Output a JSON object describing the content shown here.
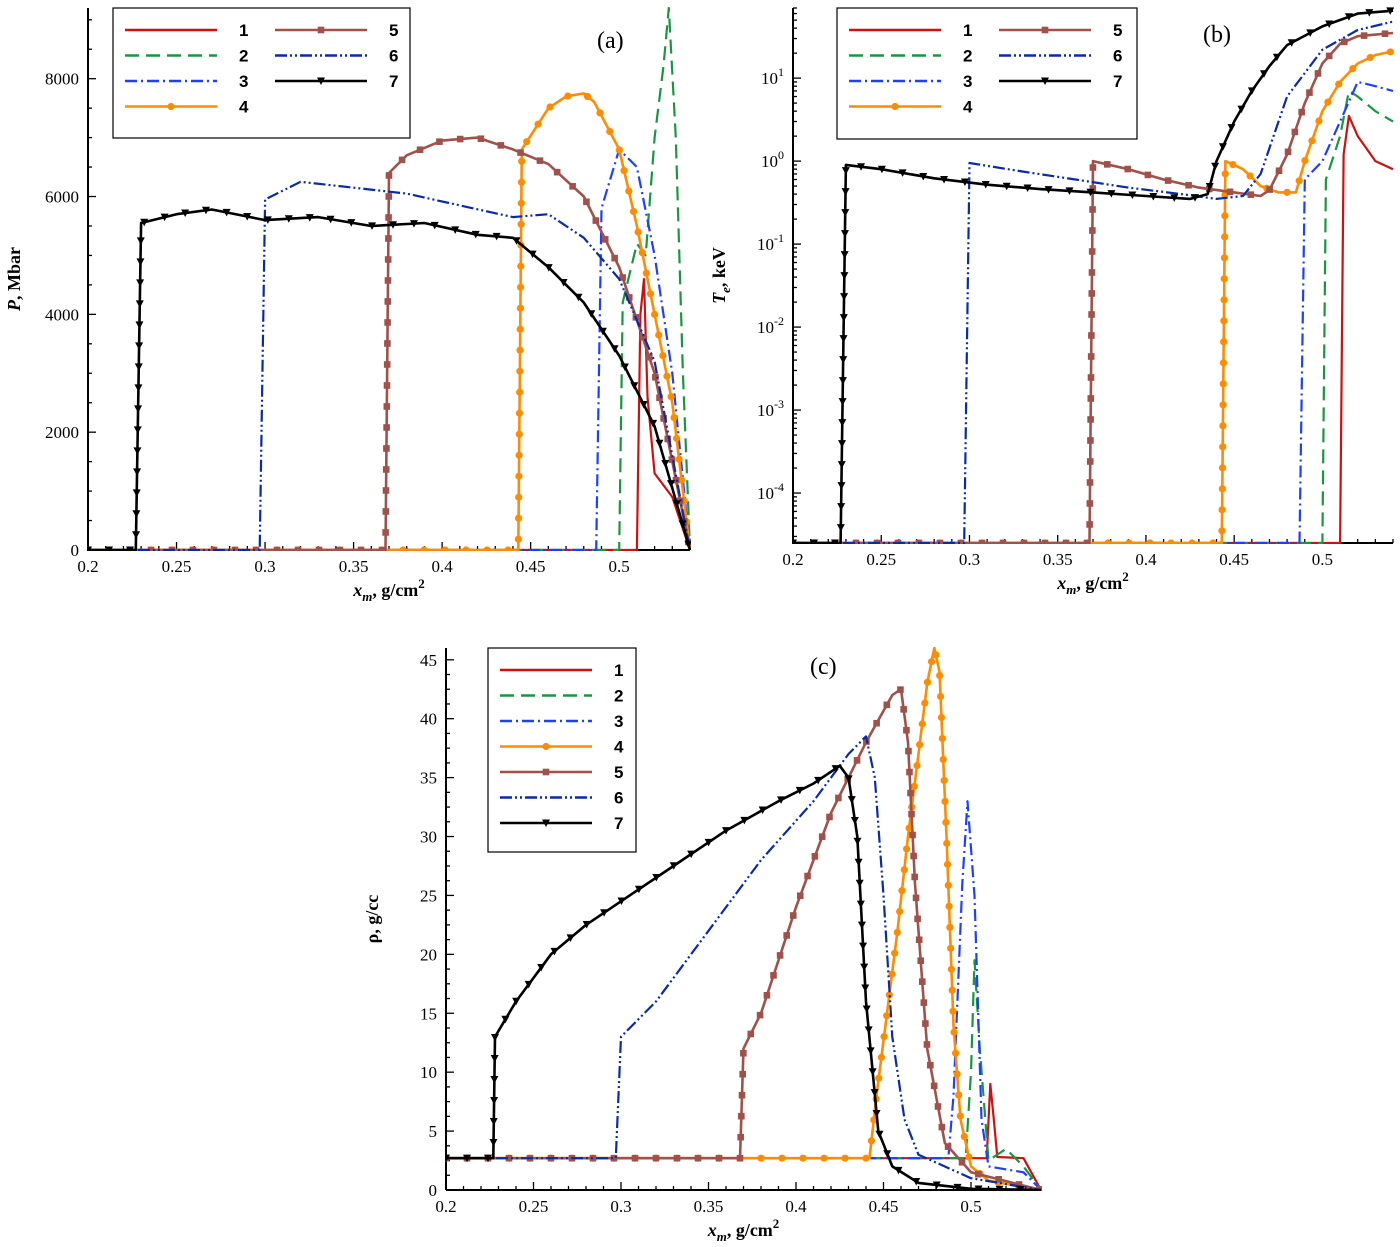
{
  "figure": {
    "title": "",
    "legend_entries": [
      "1",
      "2",
      "3",
      "4",
      "5",
      "6",
      "7"
    ],
    "colors": {
      "1": "#cc1111",
      "2": "#1a9641",
      "3": "#1f3fff",
      "4": "#ff8c00",
      "5": "#a0524a",
      "6": "#0b2aa8",
      "7": "#000000"
    },
    "line_styles": {
      "1": "solid",
      "2": "dashed",
      "3": "dash-dot",
      "4": "solid-circle",
      "5": "solid-square",
      "6": "dash-dot-dot",
      "7": "solid-triangle-down"
    }
  },
  "chart_data": [
    {
      "panel": "(a)",
      "type": "line",
      "xlabel": "x_m, g/cm^2",
      "ylabel": "P, Mbar",
      "xlim": [
        0.2,
        0.54
      ],
      "ylim": [
        0,
        9200
      ],
      "yscale": "linear",
      "xticks": [
        0.2,
        0.25,
        0.3,
        0.35,
        0.4,
        0.45,
        0.5
      ],
      "yticks": [
        0,
        2000,
        4000,
        6000,
        8000
      ],
      "legend_position": "top-left",
      "legend_columns": 2,
      "series": [
        {
          "name": "1",
          "x": [
            0.2,
            0.51,
            0.512,
            0.514,
            0.516,
            0.52,
            0.53,
            0.54
          ],
          "y": [
            0,
            0,
            4000,
            4600,
            2600,
            1300,
            900,
            0
          ]
        },
        {
          "name": "2",
          "x": [
            0.2,
            0.5,
            0.502,
            0.51,
            0.515,
            0.52,
            0.525,
            0.528,
            0.532,
            0.536,
            0.54
          ],
          "y": [
            0,
            0,
            4200,
            5200,
            5000,
            7000,
            8200,
            9200,
            7000,
            3000,
            0
          ]
        },
        {
          "name": "3",
          "x": [
            0.2,
            0.487,
            0.49,
            0.5,
            0.51,
            0.52,
            0.53,
            0.54
          ],
          "y": [
            0,
            0,
            5800,
            6800,
            6500,
            5000,
            3000,
            0
          ]
        },
        {
          "name": "4",
          "x": [
            0.2,
            0.443,
            0.445,
            0.46,
            0.47,
            0.48,
            0.486,
            0.5,
            0.51,
            0.52,
            0.53,
            0.54
          ],
          "y": [
            0,
            0,
            6800,
            7500,
            7700,
            7750,
            7600,
            6800,
            5500,
            4000,
            2500,
            0
          ]
        },
        {
          "name": "5",
          "x": [
            0.2,
            0.368,
            0.37,
            0.38,
            0.4,
            0.42,
            0.44,
            0.46,
            0.48,
            0.5,
            0.52,
            0.54
          ],
          "y": [
            0,
            0,
            6400,
            6700,
            6950,
            7000,
            6800,
            6550,
            6000,
            4800,
            3000,
            0
          ]
        },
        {
          "name": "6",
          "x": [
            0.2,
            0.297,
            0.3,
            0.32,
            0.35,
            0.38,
            0.41,
            0.44,
            0.46,
            0.48,
            0.5,
            0.52,
            0.54
          ],
          "y": [
            0,
            0,
            5950,
            6250,
            6150,
            6050,
            5850,
            5650,
            5700,
            5300,
            4600,
            3200,
            0
          ]
        },
        {
          "name": "7",
          "x": [
            0.2,
            0.227,
            0.23,
            0.25,
            0.27,
            0.3,
            0.33,
            0.36,
            0.39,
            0.42,
            0.44,
            0.46,
            0.48,
            0.5,
            0.52,
            0.54
          ],
          "y": [
            0,
            0,
            5550,
            5700,
            5780,
            5600,
            5650,
            5500,
            5550,
            5350,
            5300,
            4800,
            4200,
            3300,
            2100,
            0
          ]
        }
      ]
    },
    {
      "panel": "(b)",
      "type": "line",
      "xlabel": "x_m, g/cm^2",
      "ylabel": "T_e, keV",
      "xlim": [
        0.2,
        0.54
      ],
      "ylim": [
        2.5e-05,
        70
      ],
      "yscale": "log",
      "xticks": [
        0.2,
        0.25,
        0.3,
        0.35,
        0.4,
        0.45,
        0.5
      ],
      "yticks": [
        0.0001,
        0.001,
        0.01,
        0.1,
        1,
        10
      ],
      "ytick_labels": [
        "10^-4",
        "10^-3",
        "10^-2",
        "10^-1",
        "10^0",
        "10^1"
      ],
      "legend_position": "top-left",
      "legend_columns": 2,
      "series": [
        {
          "name": "1",
          "x": [
            0.2,
            0.51,
            0.512,
            0.515,
            0.52,
            0.53,
            0.54
          ],
          "y": [
            2.5e-05,
            2.5e-05,
            1.2,
            3.5,
            2,
            1,
            0.8
          ]
        },
        {
          "name": "2",
          "x": [
            0.2,
            0.5,
            0.502,
            0.51,
            0.515,
            0.52,
            0.53,
            0.54
          ],
          "y": [
            2.5e-05,
            2.5e-05,
            0.6,
            2,
            7,
            6,
            4,
            3
          ]
        },
        {
          "name": "3",
          "x": [
            0.2,
            0.487,
            0.49,
            0.5,
            0.51,
            0.52,
            0.53,
            0.54
          ],
          "y": [
            2.5e-05,
            2.5e-05,
            0.6,
            1,
            3,
            9,
            8,
            7
          ]
        },
        {
          "name": "4",
          "x": [
            0.2,
            0.443,
            0.445,
            0.455,
            0.465,
            0.475,
            0.485,
            0.49,
            0.5,
            0.51,
            0.52,
            0.53,
            0.54
          ],
          "y": [
            2.5e-05,
            2.5e-05,
            1,
            0.8,
            0.5,
            0.42,
            0.42,
            1,
            4,
            9,
            15,
            19,
            21
          ]
        },
        {
          "name": "5",
          "x": [
            0.2,
            0.368,
            0.37,
            0.39,
            0.41,
            0.43,
            0.45,
            0.465,
            0.47,
            0.48,
            0.49,
            0.5,
            0.51,
            0.52,
            0.54
          ],
          "y": [
            2.5e-05,
            2.5e-05,
            1,
            0.8,
            0.6,
            0.48,
            0.42,
            0.38,
            0.45,
            1.2,
            5,
            15,
            26,
            32,
            35
          ]
        },
        {
          "name": "6",
          "x": [
            0.2,
            0.297,
            0.3,
            0.33,
            0.36,
            0.39,
            0.42,
            0.44,
            0.455,
            0.465,
            0.48,
            0.5,
            0.52,
            0.54
          ],
          "y": [
            2.5e-05,
            2.5e-05,
            0.95,
            0.75,
            0.6,
            0.48,
            0.4,
            0.35,
            0.38,
            0.7,
            6,
            22,
            38,
            48
          ]
        },
        {
          "name": "7",
          "x": [
            0.2,
            0.227,
            0.23,
            0.25,
            0.28,
            0.31,
            0.34,
            0.37,
            0.4,
            0.425,
            0.435,
            0.44,
            0.45,
            0.46,
            0.47,
            0.48,
            0.5,
            0.52,
            0.54
          ],
          "y": [
            2.5e-05,
            2.5e-05,
            0.9,
            0.8,
            0.62,
            0.52,
            0.46,
            0.42,
            0.38,
            0.35,
            0.4,
            1,
            3,
            7,
            14,
            25,
            42,
            60,
            65
          ]
        }
      ]
    },
    {
      "panel": "(c)",
      "type": "line",
      "xlabel": "x_m, g/cm^2",
      "ylabel": "ρ, g/cc",
      "xlim": [
        0.2,
        0.54
      ],
      "ylim": [
        0,
        46
      ],
      "yscale": "linear",
      "xticks": [
        0.2,
        0.25,
        0.3,
        0.35,
        0.4,
        0.45,
        0.5
      ],
      "yticks": [
        0,
        5,
        10,
        15,
        20,
        25,
        30,
        35,
        40,
        45
      ],
      "legend_position": "top-left",
      "legend_columns": 1,
      "series": [
        {
          "name": "1",
          "x": [
            0.2,
            0.509,
            0.511,
            0.513,
            0.515,
            0.53,
            0.54
          ],
          "y": [
            2.7,
            2.7,
            9,
            6,
            2.8,
            2.7,
            0
          ]
        },
        {
          "name": "2",
          "x": [
            0.2,
            0.497,
            0.5,
            0.502,
            0.505,
            0.51,
            0.52,
            0.53,
            0.54
          ],
          "y": [
            2.7,
            2.7,
            10,
            19.5,
            12,
            2.5,
            3.5,
            2,
            0
          ]
        },
        {
          "name": "3",
          "x": [
            0.2,
            0.487,
            0.49,
            0.495,
            0.498,
            0.502,
            0.506,
            0.51,
            0.53,
            0.54
          ],
          "y": [
            2.7,
            2.7,
            8,
            26,
            33,
            25,
            6,
            2,
            1.5,
            0
          ]
        },
        {
          "name": "4",
          "x": [
            0.2,
            0.442,
            0.446,
            0.452,
            0.458,
            0.464,
            0.47,
            0.475,
            0.479,
            0.482,
            0.486,
            0.49,
            0.494,
            0.5,
            0.51,
            0.54
          ],
          "y": [
            2.7,
            2.7,
            8,
            15,
            22,
            30,
            37,
            43,
            46,
            44,
            30,
            14,
            6,
            2,
            0.8,
            0
          ]
        },
        {
          "name": "5",
          "x": [
            0.2,
            0.368,
            0.37,
            0.38,
            0.4,
            0.42,
            0.44,
            0.455,
            0.46,
            0.464,
            0.468,
            0.475,
            0.485,
            0.5,
            0.54
          ],
          "y": [
            2.7,
            2.7,
            12,
            15,
            24,
            32,
            38,
            42,
            42.5,
            38,
            26,
            12,
            4,
            1.5,
            0
          ]
        },
        {
          "name": "6",
          "x": [
            0.2,
            0.297,
            0.3,
            0.32,
            0.35,
            0.38,
            0.41,
            0.43,
            0.44,
            0.445,
            0.45,
            0.455,
            0.462,
            0.47,
            0.5,
            0.54
          ],
          "y": [
            2.7,
            2.7,
            13,
            16,
            22,
            28,
            33,
            37,
            38.5,
            35,
            25,
            13,
            6,
            3,
            1,
            0
          ]
        },
        {
          "name": "7",
          "x": [
            0.2,
            0.227,
            0.228,
            0.24,
            0.26,
            0.28,
            0.3,
            0.33,
            0.36,
            0.39,
            0.41,
            0.425,
            0.43,
            0.435,
            0.44,
            0.447,
            0.455,
            0.47,
            0.5,
            0.54
          ],
          "y": [
            2.7,
            2.7,
            13,
            16,
            20,
            22.5,
            24.5,
            27.5,
            30.5,
            33,
            34.5,
            36,
            35,
            30,
            16,
            5,
            2,
            0.6,
            0.1,
            0
          ]
        }
      ]
    }
  ]
}
